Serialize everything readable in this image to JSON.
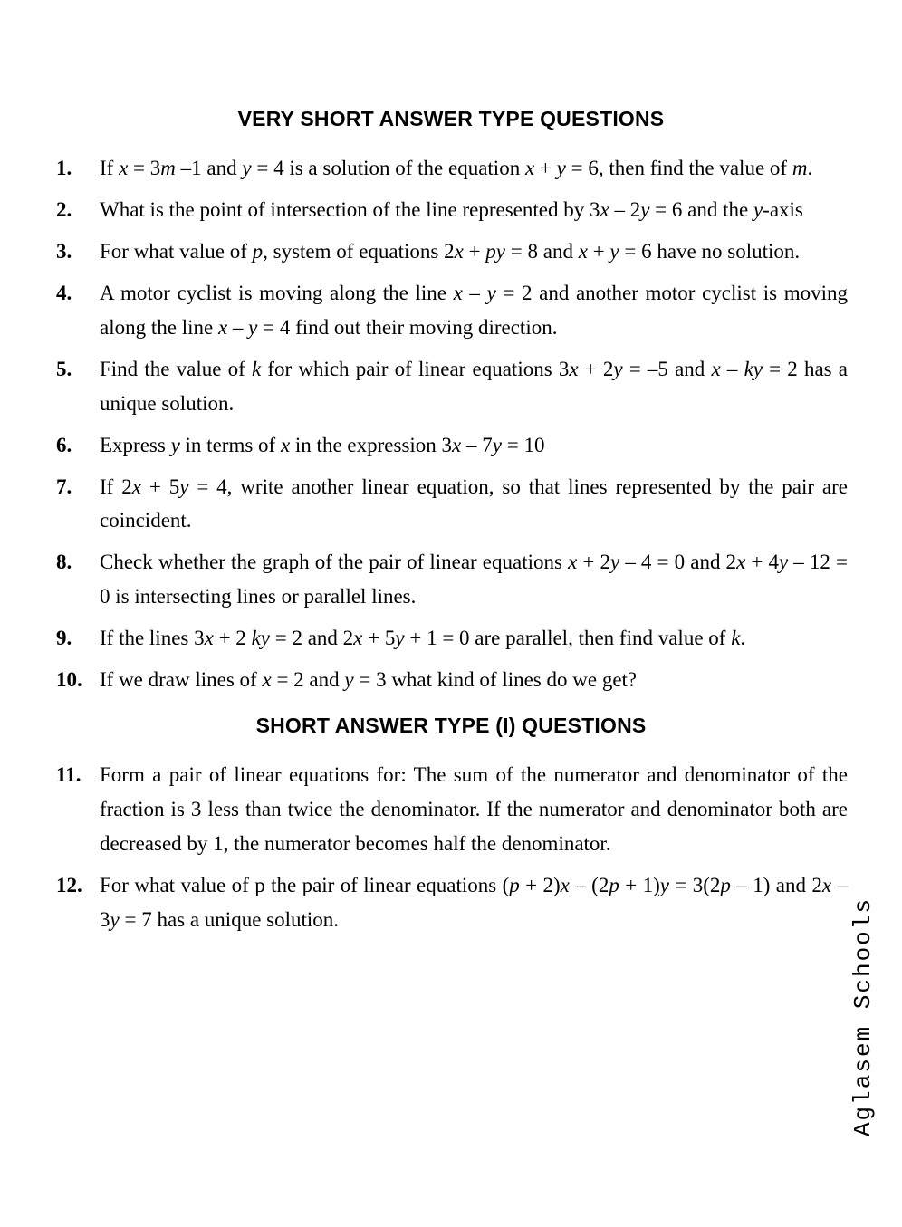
{
  "page": {
    "background_color": "#ffffff",
    "text_color": "#000000",
    "body_font": "Times New Roman",
    "heading_font": "Arial",
    "watermark_font": "Courier New",
    "body_fontsize_pt": 17,
    "heading_fontsize_pt": 17,
    "line_height": 1.65
  },
  "sections": [
    {
      "heading": "VERY SHORT ANSWER TYPE QUESTIONS",
      "questions": [
        {
          "num": "1.",
          "html": "If <i>x</i> = 3<i>m</i> –1 and <i>y</i> = 4 is a solution of the equation <i>x</i> + <i>y</i> = 6, then find the value of <i>m</i>."
        },
        {
          "num": "2.",
          "html": "What is the point of intersection of the line represented by 3<i>x</i> – 2<i>y</i> = 6 and the <i>y</i>-axis"
        },
        {
          "num": "3.",
          "html": "For what value of <i>p</i>, system of equations 2<i>x</i> + <i>py</i> = 8 and <i>x</i> + <i>y</i> = 6 have no solution."
        },
        {
          "num": "4.",
          "html": "A motor cyclist is moving along the line <i>x</i> – <i>y</i> = 2 and another motor cyclist is moving along the line <i>x</i> – <i>y</i> = 4 find out their moving direction."
        },
        {
          "num": "5.",
          "html": "Find the value of <i>k</i> for which pair of linear equations 3<i>x</i> + 2<i>y</i> = –5 and <i>x</i> – <i>ky</i> = 2 has a unique solution."
        },
        {
          "num": "6.",
          "html": "Express <i>y</i> in terms of <i>x</i> in the expression 3<i>x</i> – 7<i>y</i> = 10"
        },
        {
          "num": "7.",
          "html": "If 2<i>x</i> + 5<i>y</i> = 4, write another linear equation, so that lines represented by the pair are coincident."
        },
        {
          "num": "8.",
          "html": "Check whether the graph of the pair of linear equations <i>x</i> + 2<i>y</i> – 4 = 0 and 2<i>x</i> + 4<i>y</i> – 12 = 0 is intersecting lines or parallel lines."
        },
        {
          "num": "9.",
          "html": "If the lines 3<i>x</i> + 2 <i>ky</i> = 2 and 2<i>x</i> + 5<i>y</i> + 1 = 0 are parallel, then find value of <i>k</i>."
        },
        {
          "num": "10.",
          "html": "If we draw lines of <i>x</i> = 2 and <i>y</i> = 3 what kind of lines do we get?"
        }
      ]
    },
    {
      "heading": "SHORT ANSWER TYPE (I) QUESTIONS",
      "questions": [
        {
          "num": "11.",
          "html": "Form a pair of linear equations for: The sum of the numerator and denominator of the fraction is 3 less than twice the denominator. If the numerator and denominator both are decreased by 1, the numerator becomes half the denominator."
        },
        {
          "num": "12.",
          "html": "For what value of p the pair of linear equations (<i>p</i> + 2)<i>x</i> – (2<i>p</i> + 1)<i>y</i> = 3(2<i>p</i> – 1) and 2<i>x</i> – 3<i>y</i> = 7 has a unique solution."
        }
      ]
    }
  ],
  "watermark": "Aglasem Schools"
}
